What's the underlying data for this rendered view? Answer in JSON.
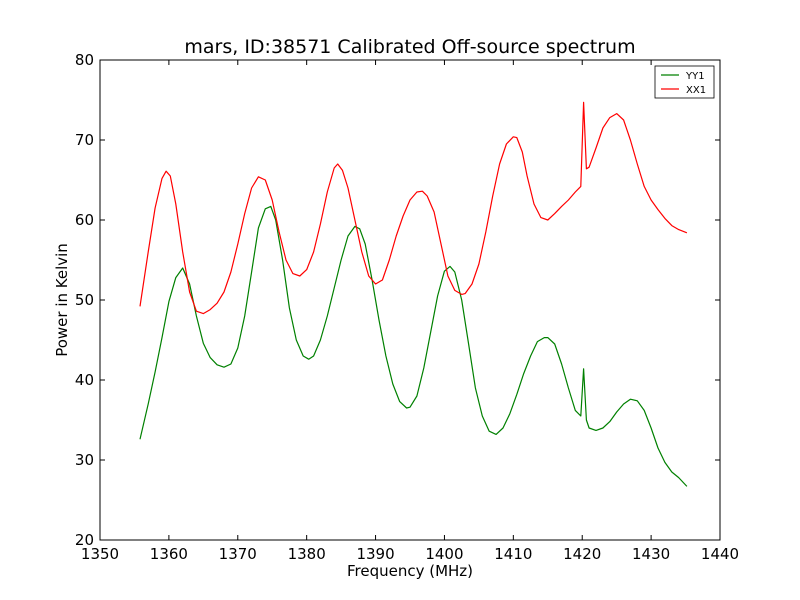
{
  "chart_data": {
    "type": "line",
    "title": "mars, ID:38571 Calibrated Off-source spectrum",
    "xlabel": "Frequency (MHz)",
    "ylabel": "Power in Kelvin",
    "xlim": [
      1350,
      1440
    ],
    "ylim": [
      20,
      80
    ],
    "xticks": [
      1350,
      1360,
      1370,
      1380,
      1390,
      1400,
      1410,
      1420,
      1430,
      1440
    ],
    "yticks": [
      20,
      30,
      40,
      50,
      60,
      70,
      80
    ],
    "xtick_labels": [
      "1350",
      "1360",
      "1370",
      "1380",
      "1390",
      "1400",
      "1410",
      "1420",
      "1430",
      "1440"
    ],
    "ytick_labels": [
      "20",
      "30",
      "40",
      "50",
      "60",
      "70",
      "80"
    ],
    "grid": false,
    "legend_position": "top-right",
    "series": [
      {
        "name": "YY1",
        "color": "#008000",
        "x": [
          1355.8,
          1357,
          1358,
          1359,
          1360,
          1361,
          1362,
          1363,
          1364,
          1365,
          1366,
          1367,
          1368,
          1369,
          1370,
          1371,
          1372,
          1373,
          1374,
          1374.8,
          1375.5,
          1376.5,
          1377.5,
          1378.5,
          1379.5,
          1380.3,
          1381,
          1382,
          1383,
          1384,
          1385,
          1386,
          1387,
          1387.7,
          1388.5,
          1389.5,
          1390.5,
          1391.5,
          1392.5,
          1393.5,
          1394.5,
          1395,
          1396,
          1397,
          1398,
          1399,
          1400,
          1400.8,
          1401.5,
          1402.5,
          1403.5,
          1404.5,
          1405.5,
          1406.5,
          1407.5,
          1408.5,
          1409.5,
          1410.5,
          1411.5,
          1412.5,
          1413.5,
          1414.5,
          1415,
          1416,
          1417,
          1418,
          1419,
          1419.8,
          1420.2,
          1420.6,
          1421,
          1422,
          1423,
          1424,
          1425,
          1426,
          1427,
          1428,
          1429,
          1430,
          1431,
          1432,
          1433,
          1434,
          1435.2
        ],
        "values": [
          32.6,
          37.0,
          41.0,
          45.3,
          49.8,
          52.8,
          54.0,
          52.0,
          48.0,
          44.6,
          42.8,
          41.9,
          41.6,
          42.0,
          44.0,
          48.0,
          53.5,
          59.0,
          61.4,
          61.7,
          60.0,
          55.0,
          49.0,
          45.0,
          43.0,
          42.6,
          43.0,
          45.0,
          48.0,
          51.5,
          55.0,
          58.0,
          59.2,
          58.9,
          57.0,
          52.5,
          47.5,
          43.0,
          39.5,
          37.3,
          36.5,
          36.6,
          38.0,
          41.5,
          46.0,
          50.5,
          53.6,
          54.2,
          53.5,
          50.0,
          44.5,
          39.0,
          35.5,
          33.6,
          33.2,
          34.0,
          35.8,
          38.2,
          40.8,
          43.0,
          44.8,
          45.3,
          45.3,
          44.5,
          42.0,
          39.0,
          36.2,
          35.5,
          41.4,
          35.0,
          34.0,
          33.7,
          34.0,
          34.8,
          36.0,
          37.0,
          37.6,
          37.4,
          36.2,
          34.0,
          31.5,
          29.7,
          28.5,
          27.8,
          26.7
        ]
      },
      {
        "name": "XX1",
        "color": "#ff0000",
        "x": [
          1355.8,
          1357,
          1358,
          1359,
          1359.6,
          1360.2,
          1361,
          1362,
          1363,
          1364,
          1365,
          1366,
          1367,
          1368,
          1369,
          1370,
          1371,
          1372,
          1373,
          1374,
          1375,
          1376,
          1377,
          1378,
          1379,
          1380,
          1381,
          1382,
          1383,
          1384,
          1384.5,
          1385.2,
          1386,
          1387,
          1388,
          1389,
          1390,
          1391,
          1392,
          1393,
          1394,
          1395,
          1396,
          1396.8,
          1397.5,
          1398.5,
          1399.5,
          1400.5,
          1401.5,
          1402.5,
          1403,
          1404,
          1405,
          1406,
          1407,
          1408,
          1409,
          1410,
          1410.5,
          1411.3,
          1412,
          1413,
          1414,
          1415,
          1416,
          1417,
          1418,
          1419,
          1419.8,
          1420.2,
          1420.6,
          1421,
          1422,
          1423,
          1424,
          1425,
          1426,
          1427,
          1428,
          1429,
          1430,
          1431,
          1432,
          1433,
          1434,
          1435.2
        ],
        "values": [
          49.2,
          56.0,
          61.5,
          65.2,
          66.1,
          65.5,
          62.0,
          56.0,
          51.0,
          48.6,
          48.3,
          48.8,
          49.6,
          51.0,
          53.5,
          57.0,
          60.8,
          64.0,
          65.4,
          65.0,
          62.5,
          58.5,
          55.0,
          53.3,
          53.0,
          53.8,
          56.0,
          59.5,
          63.5,
          66.5,
          67.0,
          66.2,
          64.0,
          60.0,
          56.0,
          53.0,
          52.0,
          52.5,
          55.0,
          58.0,
          60.5,
          62.5,
          63.5,
          63.6,
          63.0,
          61.0,
          57.0,
          53.0,
          51.2,
          50.7,
          50.8,
          52.0,
          54.5,
          58.5,
          63.0,
          67.0,
          69.5,
          70.4,
          70.3,
          68.5,
          65.5,
          62.0,
          60.3,
          60.0,
          60.8,
          61.7,
          62.5,
          63.5,
          64.2,
          74.7,
          66.4,
          66.6,
          69.0,
          71.5,
          72.8,
          73.3,
          72.5,
          70.0,
          67.0,
          64.2,
          62.5,
          61.3,
          60.2,
          59.3,
          58.8,
          58.4
        ]
      }
    ]
  }
}
